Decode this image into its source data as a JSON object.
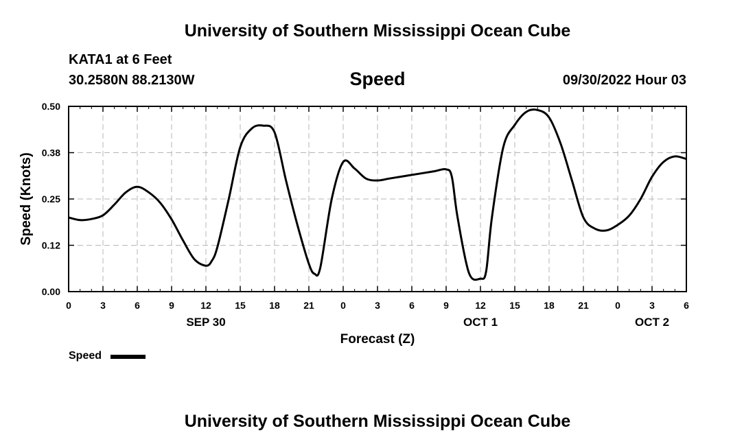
{
  "header": {
    "title": "University of Southern Mississippi Ocean Cube",
    "station": "KATA1 at 6 Feet",
    "coordinates": "30.2580N  88.2130W",
    "parameter": "Speed",
    "datetime": "09/30/2022 Hour 03"
  },
  "footer": {
    "title": "University of Southern Mississippi Ocean Cube"
  },
  "legend": {
    "label": "Speed",
    "color": "#000000"
  },
  "chart_data": {
    "type": "line",
    "title": "Speed",
    "xlabel": "Forecast (Z)",
    "ylabel": "Speed (Knots)",
    "xlim": [
      0,
      54
    ],
    "ylim": [
      0,
      0.5
    ],
    "x_ticks": [
      0,
      3,
      6,
      9,
      12,
      15,
      18,
      21,
      24,
      27,
      30,
      33,
      36,
      39,
      42,
      45,
      48,
      51,
      54
    ],
    "x_tick_labels": [
      "0",
      "3",
      "6",
      "9",
      "12",
      "15",
      "18",
      "21",
      "0",
      "3",
      "6",
      "9",
      "12",
      "15",
      "18",
      "21",
      "0",
      "3",
      "6"
    ],
    "y_ticks": [
      0,
      0.125,
      0.25,
      0.375,
      0.5
    ],
    "y_tick_labels": [
      "0.00",
      "0.12",
      "0.25",
      "0.38",
      "0.50"
    ],
    "date_labels": [
      {
        "x": 12,
        "label": "SEP 30"
      },
      {
        "x": 36,
        "label": "OCT 1"
      },
      {
        "x": 51,
        "label": "OCT 2"
      }
    ],
    "grid": true,
    "legend_position": "bottom-left",
    "series": [
      {
        "name": "Speed",
        "color": "#000000",
        "x": [
          0,
          1,
          2,
          3,
          4,
          5,
          6,
          7,
          8,
          9,
          10,
          11,
          12,
          12.5,
          13,
          14,
          15,
          16,
          17,
          18,
          19,
          20,
          21,
          21.5,
          22,
          23,
          24,
          25,
          26,
          27,
          28,
          29,
          30,
          31,
          32,
          33,
          33.5,
          34,
          35,
          36,
          36.5,
          37,
          38,
          39,
          40,
          41,
          42,
          43,
          44,
          45,
          46,
          47,
          48,
          49,
          50,
          51,
          52,
          53,
          54
        ],
        "y": [
          0.2,
          0.193,
          0.196,
          0.206,
          0.235,
          0.268,
          0.283,
          0.268,
          0.24,
          0.195,
          0.138,
          0.087,
          0.07,
          0.082,
          0.12,
          0.25,
          0.39,
          0.44,
          0.448,
          0.43,
          0.3,
          0.18,
          0.075,
          0.048,
          0.065,
          0.25,
          0.35,
          0.332,
          0.305,
          0.3,
          0.305,
          0.31,
          0.315,
          0.32,
          0.325,
          0.33,
          0.31,
          0.2,
          0.05,
          0.035,
          0.055,
          0.2,
          0.39,
          0.45,
          0.485,
          0.49,
          0.47,
          0.4,
          0.3,
          0.2,
          0.17,
          0.165,
          0.18,
          0.205,
          0.25,
          0.31,
          0.35,
          0.365,
          0.358
        ]
      }
    ]
  }
}
